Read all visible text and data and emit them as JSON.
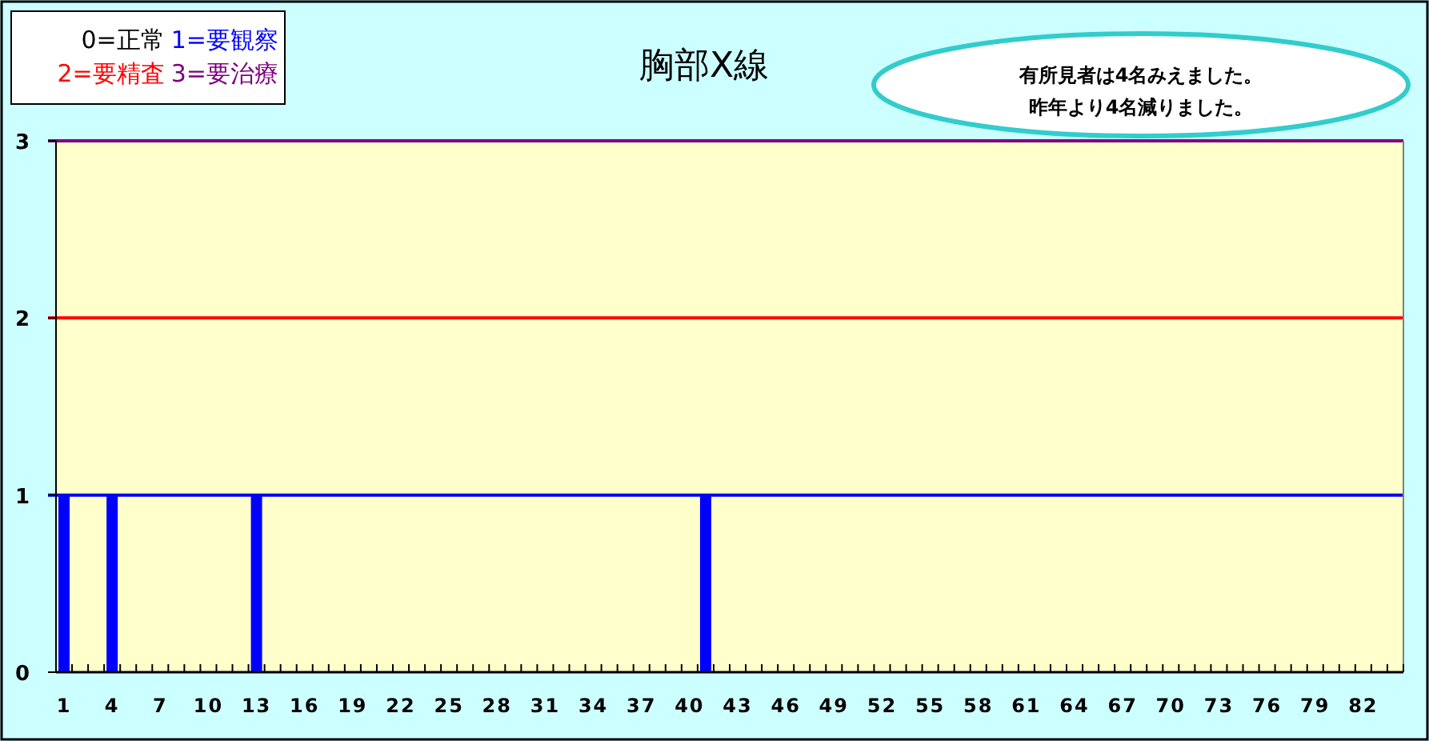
{
  "chart_data": {
    "type": "bar",
    "title": "胸部X線",
    "categories": [
      "1",
      null,
      null,
      "4",
      null,
      null,
      "7",
      null,
      null,
      "10",
      null,
      null,
      "13",
      null,
      null,
      "16",
      null,
      null,
      "19",
      null,
      null,
      "22",
      null,
      null,
      "25",
      null,
      null,
      "28",
      null,
      null,
      "31",
      null,
      null,
      "34",
      null,
      null,
      "37",
      null,
      null,
      "40",
      null,
      null,
      "43",
      null,
      null,
      "46",
      null,
      null,
      "49",
      null,
      null,
      "52",
      null,
      null,
      "55",
      null,
      null,
      "58",
      null,
      null,
      "61",
      null,
      null,
      "64",
      null,
      null,
      "67",
      null,
      null,
      "70",
      null,
      null,
      "73",
      null,
      null,
      "76",
      null,
      null,
      "79",
      null,
      null,
      "82",
      null,
      null
    ],
    "values": [
      1,
      0,
      0,
      1,
      0,
      0,
      0,
      0,
      0,
      0,
      0,
      0,
      1,
      0,
      0,
      0,
      0,
      0,
      0,
      0,
      0,
      0,
      0,
      0,
      0,
      0,
      0,
      0,
      0,
      0,
      0,
      0,
      0,
      0,
      0,
      0,
      0,
      0,
      0,
      0,
      1,
      0,
      0,
      0,
      0,
      0,
      0,
      0,
      0,
      0,
      0,
      0,
      0,
      0,
      0,
      0,
      0,
      0,
      0,
      0,
      0,
      0,
      0,
      0,
      0,
      0,
      0,
      0,
      0,
      0,
      0,
      0,
      0,
      0,
      0,
      0,
      0,
      0,
      0,
      0,
      0,
      0,
      0,
      0
    ],
    "color": "#0000ff",
    "ylim": [
      0,
      3
    ],
    "yticks": [
      0,
      1,
      2,
      3
    ],
    "ref_lines": [
      {
        "axis": "y",
        "value": 1,
        "label": "1=要観察",
        "color": "#0000ff"
      },
      {
        "axis": "y",
        "value": 2,
        "label": "2=要精査",
        "color": "#ff0000"
      },
      {
        "axis": "y",
        "value": 3,
        "label": "3=要治療",
        "color": "#800080"
      }
    ],
    "annotations": [
      "0=正常",
      "有所見者は4名みえました。",
      "昨年より4名減りました。"
    ]
  }
}
